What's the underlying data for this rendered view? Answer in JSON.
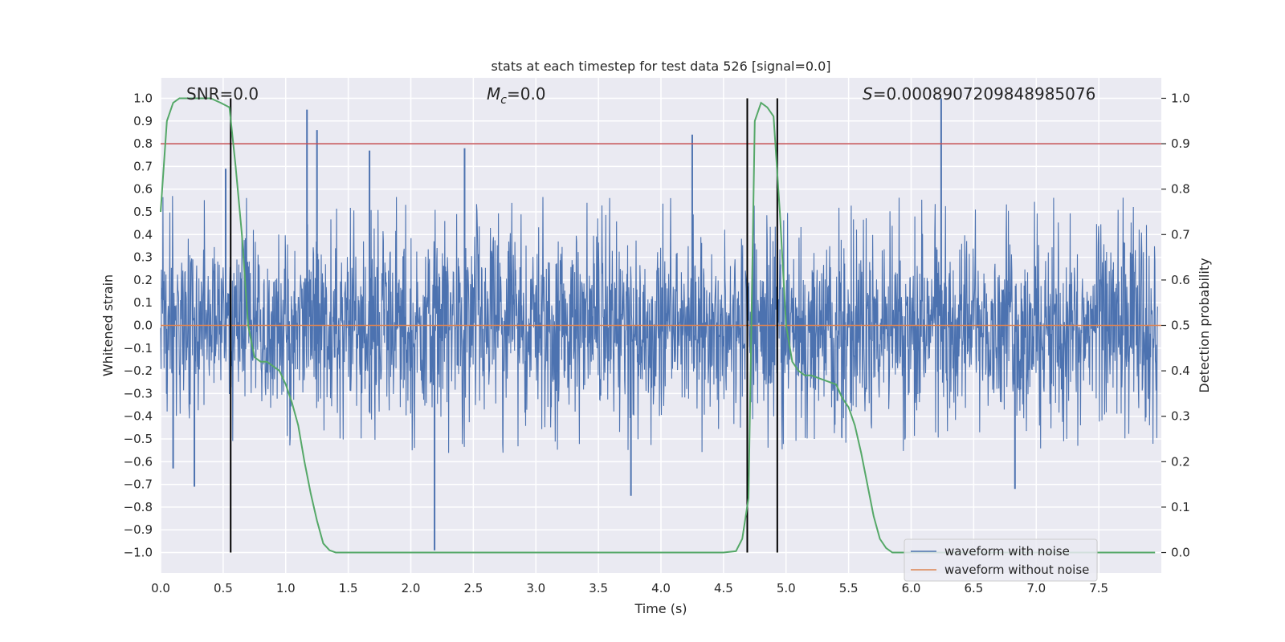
{
  "chart_data": {
    "type": "line",
    "title": "stats at each timestep for test data 526 [signal=0.0]",
    "xlabel": "Time (s)",
    "ylabel_left": "Whitened strain",
    "ylabel_right": "Detection probability",
    "xlim": [
      0.0,
      8.0
    ],
    "ylim_left": [
      -1.09,
      1.09
    ],
    "ylim_right": [
      -0.045,
      1.045
    ],
    "x_ticks": [
      0.0,
      0.5,
      1.0,
      1.5,
      2.0,
      2.5,
      3.0,
      3.5,
      4.0,
      4.5,
      5.0,
      5.5,
      6.0,
      6.5,
      7.0,
      7.5
    ],
    "x_tick_labels": [
      "0.0",
      "0.5",
      "1.0",
      "1.5",
      "2.0",
      "2.5",
      "3.0",
      "3.5",
      "4.0",
      "4.5",
      "5.0",
      "5.5",
      "6.0",
      "6.5",
      "7.0",
      "7.5"
    ],
    "y_left_ticks": [
      1.0,
      0.9,
      0.8,
      0.7,
      0.6,
      0.5,
      0.4,
      0.3,
      0.2,
      0.1,
      0.0,
      -0.1,
      -0.2,
      -0.3,
      -0.4,
      -0.5,
      -0.6,
      -0.7,
      -0.8,
      -0.9,
      -1.0
    ],
    "y_left_tick_labels": [
      "1.0",
      "0.9",
      "0.8",
      "0.7",
      "0.6",
      "0.5",
      "0.4",
      "0.3",
      "0.2",
      "0.1",
      "0.0",
      "−0.1",
      "−0.2",
      "−0.3",
      "−0.4",
      "−0.5",
      "−0.6",
      "−0.7",
      "−0.8",
      "−0.9",
      "−1.0"
    ],
    "y_right_ticks": [
      1.0,
      0.9,
      0.8,
      0.7,
      0.6,
      0.5,
      0.4,
      0.3,
      0.2,
      0.1,
      0.0
    ],
    "y_right_tick_labels": [
      "1.0",
      "0.9",
      "0.8",
      "0.7",
      "0.6",
      "0.5",
      "0.4",
      "0.3",
      "0.2",
      "0.1",
      "0.0"
    ],
    "annotations": {
      "snr": "SNR=0.0",
      "mc_symbol": "M",
      "mc_subscript": "c",
      "mc_value": "=0.0",
      "s_symbol": "S",
      "s_value": "=0.0008907209848985076"
    },
    "threshold": {
      "value": 0.9,
      "axis": "right",
      "color": "#c44e52"
    },
    "vertical_markers": [
      0.56,
      4.69,
      4.93
    ],
    "series": [
      {
        "name": "waveform with noise",
        "axis": "left",
        "color": "#4c72b0",
        "description": "whitened noise, approx ±0.4 amplitude with spikes",
        "notable_spikes": [
          {
            "x": 0.52,
            "y": 0.69
          },
          {
            "x": 1.17,
            "y": 0.95
          },
          {
            "x": 1.25,
            "y": 0.86
          },
          {
            "x": 1.67,
            "y": 0.77
          },
          {
            "x": 2.43,
            "y": 0.78
          },
          {
            "x": 4.25,
            "y": 0.84
          },
          {
            "x": 6.24,
            "y": 1.0
          },
          {
            "x": 2.19,
            "y": -0.99
          },
          {
            "x": 0.27,
            "y": -0.71
          },
          {
            "x": 3.76,
            "y": -0.75
          },
          {
            "x": 6.83,
            "y": -0.72
          },
          {
            "x": 0.1,
            "y": -0.63
          }
        ]
      },
      {
        "name": "waveform without noise",
        "axis": "left",
        "color": "#dd8452",
        "x": [
          0.0,
          8.0
        ],
        "y": [
          0.0,
          0.0
        ]
      },
      {
        "name": "detection probability",
        "axis": "right",
        "color": "#55a868",
        "x": [
          0.0,
          0.05,
          0.1,
          0.15,
          0.2,
          0.3,
          0.4,
          0.48,
          0.55,
          0.6,
          0.65,
          0.7,
          0.75,
          0.8,
          0.85,
          0.9,
          0.95,
          1.0,
          1.05,
          1.1,
          1.15,
          1.2,
          1.25,
          1.3,
          1.35,
          1.4,
          1.5,
          2.0,
          3.0,
          4.0,
          4.5,
          4.6,
          4.65,
          4.7,
          4.75,
          4.8,
          4.85,
          4.9,
          4.95,
          5.0,
          5.05,
          5.1,
          5.15,
          5.2,
          5.3,
          5.4,
          5.45,
          5.5,
          5.55,
          5.6,
          5.65,
          5.7,
          5.75,
          5.8,
          5.85,
          5.9,
          6.0,
          7.0,
          7.5,
          7.95
        ],
        "y": [
          0.75,
          0.95,
          0.99,
          1.0,
          1.0,
          1.0,
          1.0,
          0.99,
          0.98,
          0.85,
          0.7,
          0.5,
          0.43,
          0.42,
          0.42,
          0.41,
          0.4,
          0.37,
          0.33,
          0.28,
          0.2,
          0.13,
          0.07,
          0.02,
          0.005,
          0.0,
          0.0,
          0.0,
          0.0,
          0.0,
          0.0,
          0.003,
          0.03,
          0.12,
          0.95,
          0.99,
          0.98,
          0.96,
          0.75,
          0.5,
          0.42,
          0.4,
          0.39,
          0.39,
          0.38,
          0.37,
          0.34,
          0.32,
          0.28,
          0.22,
          0.15,
          0.08,
          0.03,
          0.01,
          0.0,
          0.0,
          0.0,
          0.0,
          0.0,
          0.0
        ]
      }
    ],
    "legend": {
      "placement": "lower-right",
      "entries": [
        {
          "label": "waveform with noise",
          "color": "#4c72b0"
        },
        {
          "label": "waveform without noise",
          "color": "#dd8452"
        }
      ]
    },
    "style": {
      "background": "#eaeaf2",
      "grid": true,
      "grid_color": "#ffffff"
    }
  }
}
